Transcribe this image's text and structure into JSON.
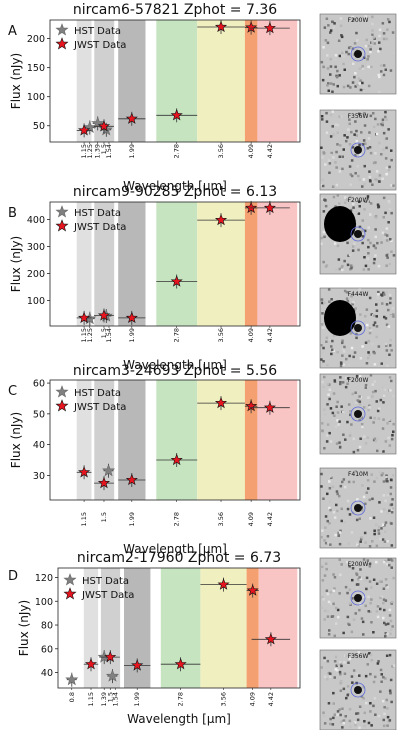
{
  "chart_data": [
    {
      "type": "scatter",
      "panel_letter": "A",
      "title": "nircam6-57821 Zphot = 7.36",
      "xlabel": "Wavelength [μm]",
      "ylabel": "Flux (nJy)",
      "ylim": [
        22,
        232
      ],
      "yticks": [
        50,
        100,
        150,
        200
      ],
      "xtick_labels": [
        "1.15",
        "1.25",
        "1.39",
        "1.5",
        "1.54",
        "1.99",
        "2.78",
        "3.56",
        "4.09",
        "4.42"
      ],
      "legend": {
        "placement": "upper-left",
        "entries": [
          "HST Data",
          "JWST Data"
        ]
      },
      "series": [
        {
          "name": "HST Data",
          "marker": "star",
          "color": "#808080",
          "points": [
            {
              "x": 1.25,
              "y": 47
            },
            {
              "x": 1.39,
              "y": 54
            },
            {
              "x": 1.54,
              "y": 43
            }
          ]
        },
        {
          "name": "JWST Data",
          "marker": "star",
          "color": "#e6141e",
          "points": [
            {
              "x": 1.15,
              "y": 42
            },
            {
              "x": 1.5,
              "y": 49
            },
            {
              "x": 1.99,
              "y": 62
            },
            {
              "x": 2.78,
              "y": 68
            },
            {
              "x": 3.56,
              "y": 220
            },
            {
              "x": 4.09,
              "y": 219
            },
            {
              "x": 4.42,
              "y": 218
            }
          ]
        }
      ],
      "cutouts": [
        "F200W",
        "F356W"
      ]
    },
    {
      "type": "scatter",
      "panel_letter": "B",
      "title": "nircam9-90285 Zphot = 6.13",
      "xlabel": "Wavelength [μm]",
      "ylabel": "Flux (nJy)",
      "ylim": [
        5,
        465
      ],
      "yticks": [
        100,
        200,
        300,
        400
      ],
      "xtick_labels": [
        "1.15",
        "1.25",
        "1.5",
        "1.54",
        "1.99",
        "2.78",
        "3.56",
        "4.09",
        "4.42"
      ],
      "legend": {
        "placement": "upper-left",
        "entries": [
          "HST Data",
          "JWST Data"
        ]
      },
      "series": [
        {
          "name": "HST Data",
          "marker": "star",
          "color": "#808080",
          "points": [
            {
              "x": 1.25,
              "y": 32
            },
            {
              "x": 1.54,
              "y": 42
            }
          ]
        },
        {
          "name": "JWST Data",
          "marker": "star",
          "color": "#e6141e",
          "points": [
            {
              "x": 1.15,
              "y": 35
            },
            {
              "x": 1.5,
              "y": 44
            },
            {
              "x": 1.99,
              "y": 35
            },
            {
              "x": 2.78,
              "y": 170
            },
            {
              "x": 3.56,
              "y": 398
            },
            {
              "x": 4.09,
              "y": 443
            },
            {
              "x": 4.42,
              "y": 443
            }
          ]
        }
      ],
      "cutouts": [
        "F200W",
        "F444W"
      ]
    },
    {
      "type": "scatter",
      "panel_letter": "C",
      "title": "nircam3-24693 Zphot = 5.56",
      "xlabel": "Wavelength [μm]",
      "ylabel": "Flux (nJy)",
      "ylim": [
        22,
        61
      ],
      "yticks": [
        30,
        40,
        50,
        60
      ],
      "xtick_labels": [
        "1.15",
        "1.5",
        "1.99",
        "2.78",
        "3.56",
        "4.09",
        "4.42"
      ],
      "legend": {
        "placement": "upper-left",
        "entries": [
          "HST Data",
          "JWST Data"
        ]
      },
      "series": [
        {
          "name": "HST Data",
          "marker": "star",
          "color": "#808080",
          "points": [
            {
              "x": 1.58,
              "y": 31.5
            }
          ]
        },
        {
          "name": "JWST Data",
          "marker": "star",
          "color": "#e6141e",
          "points": [
            {
              "x": 1.15,
              "y": 31
            },
            {
              "x": 1.5,
              "y": 27.5
            },
            {
              "x": 1.99,
              "y": 28.5
            },
            {
              "x": 2.78,
              "y": 35
            },
            {
              "x": 3.56,
              "y": 53.5
            },
            {
              "x": 4.09,
              "y": 52.5
            },
            {
              "x": 4.42,
              "y": 52
            }
          ]
        }
      ],
      "cutouts": [
        "F200W",
        "F410M"
      ]
    },
    {
      "type": "scatter",
      "panel_letter": "D",
      "title": "nircam2-17960 Zphot = 6.73",
      "xlabel": "Wavelength [μm]",
      "ylabel": "Flux (nJy)",
      "ylim": [
        27,
        128
      ],
      "yticks": [
        40,
        60,
        80,
        100,
        120
      ],
      "xtick_labels": [
        "0.8",
        "1.15",
        "1.39",
        "1.5",
        "1.54",
        "1.99",
        "2.78",
        "3.56",
        "4.09",
        "4.42"
      ],
      "legend": {
        "placement": "upper-left",
        "entries": [
          "HST Data",
          "JWST Data"
        ]
      },
      "series": [
        {
          "name": "HST Data",
          "marker": "star",
          "color": "#808080",
          "points": [
            {
              "x": 0.8,
              "y": 34
            },
            {
              "x": 1.39,
              "y": 53
            },
            {
              "x": 1.54,
              "y": 37
            }
          ]
        },
        {
          "name": "JWST Data",
          "marker": "star",
          "color": "#e6141e",
          "points": [
            {
              "x": 1.15,
              "y": 47
            },
            {
              "x": 1.5,
              "y": 53
            },
            {
              "x": 1.99,
              "y": 46
            },
            {
              "x": 2.78,
              "y": 47
            },
            {
              "x": 3.56,
              "y": 114
            },
            {
              "x": 4.09,
              "y": 109
            },
            {
              "x": 4.42,
              "y": 68
            }
          ]
        }
      ],
      "cutouts": [
        "F200W",
        "F356W"
      ]
    }
  ]
}
